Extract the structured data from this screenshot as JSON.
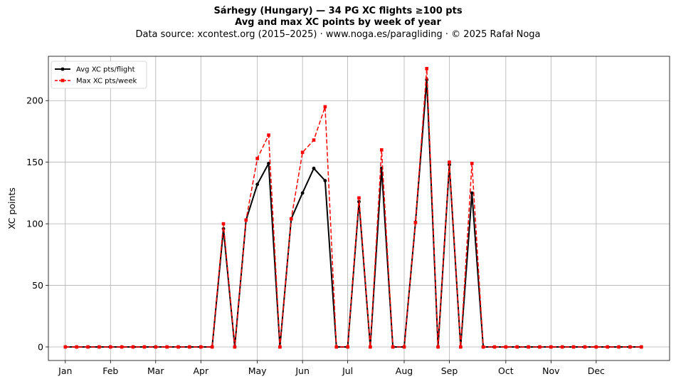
{
  "header": {
    "title": "Sárhegy (Hungary)  —  34 PG XC flights ≥100 pts",
    "subtitle": "Avg and max XC points by week of year",
    "source": "Data source: xcontest.org (2015–2025)  ·  www.noga.es/paragliding  ·  © 2025 Rafał Noga"
  },
  "chart_data": {
    "type": "line",
    "title": "Sárhegy (Hungary)  —  34 PG XC flights ≥100 pts",
    "subtitle": "Avg and max XC points by week of year",
    "xlabel": "",
    "ylabel": "XC points",
    "x": [
      1,
      2,
      3,
      4,
      5,
      6,
      7,
      8,
      9,
      10,
      11,
      12,
      13,
      14,
      15,
      16,
      17,
      18,
      19,
      20,
      21,
      22,
      23,
      24,
      25,
      26,
      27,
      28,
      29,
      30,
      31,
      32,
      33,
      34,
      35,
      36,
      37,
      38,
      39,
      40,
      41,
      42,
      43,
      44,
      45,
      46,
      47,
      48,
      49,
      50,
      51,
      52
    ],
    "xlim": [
      -0.5,
      54.5
    ],
    "ylim": [
      -11,
      236
    ],
    "month_ticks": [
      {
        "label": "Jan",
        "week": 1
      },
      {
        "label": "Feb",
        "week": 5
      },
      {
        "label": "Mar",
        "week": 9
      },
      {
        "label": "Apr",
        "week": 13
      },
      {
        "label": "May",
        "week": 18
      },
      {
        "label": "Jun",
        "week": 22
      },
      {
        "label": "Jul",
        "week": 26
      },
      {
        "label": "Aug",
        "week": 31
      },
      {
        "label": "Sep",
        "week": 35
      },
      {
        "label": "Oct",
        "week": 40
      },
      {
        "label": "Nov",
        "week": 44
      },
      {
        "label": "Dec",
        "week": 48
      }
    ],
    "y_ticks": [
      0,
      50,
      100,
      150,
      200
    ],
    "grid": true,
    "legend_position": "top-left",
    "series": [
      {
        "name": "Avg XC pts/flight",
        "color": "#000000",
        "style": "solid",
        "marker": "circle",
        "values": [
          0,
          0,
          0,
          0,
          0,
          0,
          0,
          0,
          0,
          0,
          0,
          0,
          0,
          0,
          96,
          0,
          103,
          132,
          149,
          0,
          104,
          125,
          145,
          135,
          0,
          0,
          118,
          0,
          145,
          0,
          0,
          101,
          217,
          0,
          148,
          0,
          125,
          0,
          0,
          0,
          0,
          0,
          0,
          0,
          0,
          0,
          0,
          0,
          0,
          0,
          0,
          0
        ]
      },
      {
        "name": "Max XC pts/week",
        "color": "#ff0000",
        "style": "dashed",
        "marker": "square",
        "values": [
          0,
          0,
          0,
          0,
          0,
          0,
          0,
          0,
          0,
          0,
          0,
          0,
          0,
          0,
          100,
          0,
          103,
          153,
          172,
          0,
          104,
          158,
          168,
          195,
          0,
          0,
          121,
          0,
          160,
          0,
          0,
          101,
          226,
          0,
          150,
          0,
          149,
          0,
          0,
          0,
          0,
          0,
          0,
          0,
          0,
          0,
          0,
          0,
          0,
          0,
          0,
          0
        ]
      }
    ]
  }
}
